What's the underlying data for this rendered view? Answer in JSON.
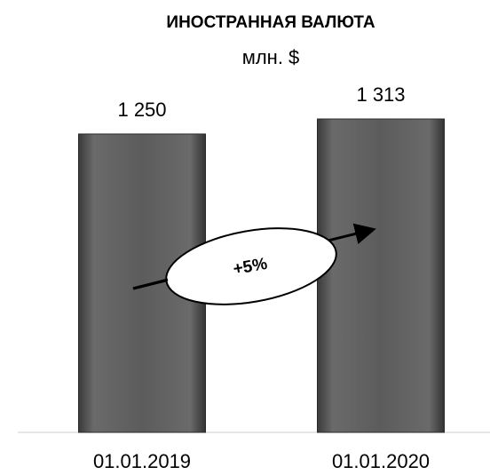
{
  "chart_data": {
    "type": "bar",
    "title": "ИНОСТРАННАЯ ВАЛЮТА",
    "subtitle": "млн. $",
    "categories": [
      "01.01.2019",
      "01.01.2020"
    ],
    "values": [
      1250,
      1313
    ],
    "value_labels": [
      "1 250",
      "1 313"
    ],
    "color": "#5a5a5a",
    "annotation": "+5%"
  }
}
